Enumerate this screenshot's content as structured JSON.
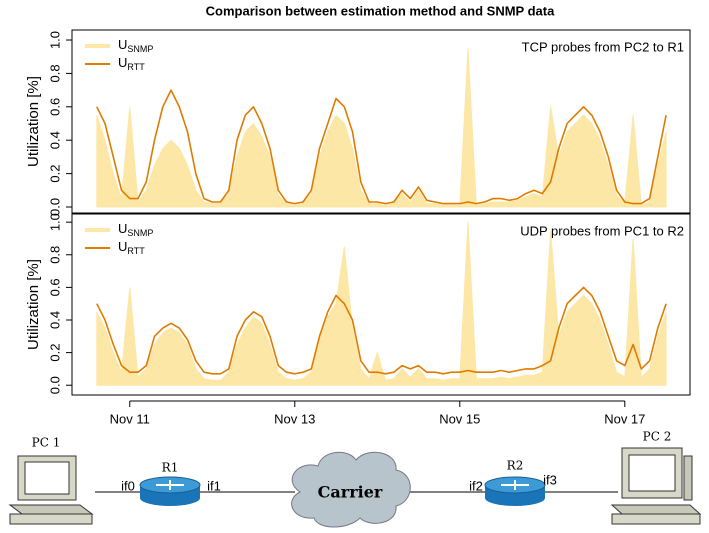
{
  "chart_data": [
    {
      "type": "line",
      "title": "Comparison between estimation method and SNMP data",
      "ylabel": "Utilization [%]",
      "annotation": "TCP probes from PC2 to R1",
      "x": [
        10.6,
        10.7,
        10.8,
        10.9,
        11.0,
        11.1,
        11.2,
        11.3,
        11.4,
        11.5,
        11.6,
        11.7,
        11.8,
        11.9,
        12.0,
        12.1,
        12.2,
        12.3,
        12.4,
        12.5,
        12.6,
        12.7,
        12.8,
        12.9,
        13.0,
        13.1,
        13.2,
        13.3,
        13.4,
        13.5,
        13.6,
        13.7,
        13.8,
        13.9,
        14.0,
        14.1,
        14.2,
        14.3,
        14.4,
        14.5,
        14.6,
        14.7,
        14.8,
        14.9,
        15.0,
        15.1,
        15.2,
        15.3,
        15.4,
        15.5,
        15.6,
        15.7,
        15.8,
        15.9,
        16.0,
        16.1,
        16.2,
        16.3,
        16.4,
        16.5,
        16.6,
        16.7,
        16.8,
        16.9,
        17.0,
        17.1,
        17.2,
        17.3,
        17.4,
        17.5
      ],
      "series": [
        {
          "name": "U",
          "subscript": "SNMP",
          "color": "#fde7a6",
          "style": "area",
          "values": [
            0.55,
            0.4,
            0.2,
            0.05,
            0.6,
            0.03,
            0.1,
            0.25,
            0.35,
            0.4,
            0.35,
            0.25,
            0.1,
            0.03,
            0.02,
            0.02,
            0.08,
            0.3,
            0.45,
            0.5,
            0.42,
            0.3,
            0.07,
            0.02,
            0.01,
            0.02,
            0.08,
            0.3,
            0.45,
            0.55,
            0.5,
            0.35,
            0.1,
            0.02,
            0.02,
            0.01,
            0.02,
            0.08,
            0.03,
            0.1,
            0.02,
            0.02,
            0.01,
            0.01,
            0.01,
            0.95,
            0.01,
            0.02,
            0.03,
            0.03,
            0.03,
            0.04,
            0.06,
            0.08,
            0.06,
            0.6,
            0.3,
            0.45,
            0.5,
            0.55,
            0.5,
            0.4,
            0.25,
            0.07,
            0.02,
            0.55,
            0.01,
            0.03,
            0.25,
            0.45
          ]
        },
        {
          "name": "U",
          "subscript": "RTT",
          "color": "#e07b00",
          "style": "line",
          "values": [
            0.6,
            0.5,
            0.3,
            0.1,
            0.05,
            0.05,
            0.15,
            0.4,
            0.6,
            0.7,
            0.6,
            0.45,
            0.2,
            0.05,
            0.03,
            0.03,
            0.1,
            0.4,
            0.55,
            0.6,
            0.5,
            0.35,
            0.1,
            0.03,
            0.02,
            0.03,
            0.1,
            0.35,
            0.5,
            0.65,
            0.6,
            0.45,
            0.15,
            0.03,
            0.03,
            0.02,
            0.03,
            0.1,
            0.05,
            0.12,
            0.04,
            0.03,
            0.02,
            0.02,
            0.02,
            0.03,
            0.02,
            0.03,
            0.05,
            0.05,
            0.04,
            0.05,
            0.08,
            0.1,
            0.08,
            0.15,
            0.35,
            0.5,
            0.55,
            0.6,
            0.55,
            0.45,
            0.3,
            0.1,
            0.03,
            0.02,
            0.02,
            0.05,
            0.3,
            0.55
          ]
        }
      ],
      "xlim": [
        10.3,
        17.79
      ],
      "ylim": [
        -0.036,
        1.06
      ],
      "yticks": [
        {
          "value": 0,
          "label": "0.0"
        },
        0.2,
        0.4,
        0.6,
        0.8,
        {
          "value": 1,
          "label": "1.0"
        }
      ],
      "legend": "top-left"
    },
    {
      "type": "line",
      "ylabel": "Utilization [%]",
      "annotation": "UDP probes from PC1 to R2",
      "x": [
        10.6,
        10.7,
        10.8,
        10.9,
        11.0,
        11.1,
        11.2,
        11.3,
        11.4,
        11.5,
        11.6,
        11.7,
        11.8,
        11.9,
        12.0,
        12.1,
        12.2,
        12.3,
        12.4,
        12.5,
        12.6,
        12.7,
        12.8,
        12.9,
        13.0,
        13.1,
        13.2,
        13.3,
        13.4,
        13.5,
        13.6,
        13.7,
        13.8,
        13.9,
        14.0,
        14.1,
        14.2,
        14.3,
        14.4,
        14.5,
        14.6,
        14.7,
        14.8,
        14.9,
        15.0,
        15.1,
        15.2,
        15.3,
        15.4,
        15.5,
        15.6,
        15.7,
        15.8,
        15.9,
        16.0,
        16.1,
        16.2,
        16.3,
        16.4,
        16.5,
        16.6,
        16.7,
        16.8,
        16.9,
        17.0,
        17.1,
        17.2,
        17.3,
        17.4,
        17.5
      ],
      "series": [
        {
          "name": "U",
          "subscript": "SNMP",
          "color": "#fde7a6",
          "style": "area",
          "values": [
            0.45,
            0.35,
            0.2,
            0.08,
            0.6,
            0.05,
            0.1,
            0.25,
            0.32,
            0.35,
            0.32,
            0.25,
            0.1,
            0.04,
            0.03,
            0.03,
            0.08,
            0.25,
            0.35,
            0.42,
            0.38,
            0.25,
            0.08,
            0.04,
            0.03,
            0.04,
            0.08,
            0.28,
            0.42,
            0.5,
            0.85,
            0.35,
            0.1,
            0.04,
            0.2,
            0.03,
            0.04,
            0.1,
            0.05,
            0.1,
            0.04,
            0.04,
            0.03,
            0.04,
            0.04,
            1.0,
            0.04,
            0.04,
            0.04,
            0.05,
            0.04,
            0.05,
            0.06,
            0.06,
            0.08,
            0.95,
            0.3,
            0.45,
            0.5,
            0.55,
            0.5,
            0.4,
            0.25,
            0.08,
            0.05,
            0.9,
            0.05,
            0.1,
            0.3,
            0.45
          ]
        },
        {
          "name": "U",
          "subscript": "RTT",
          "color": "#e07b00",
          "style": "line",
          "values": [
            0.5,
            0.4,
            0.25,
            0.12,
            0.08,
            0.08,
            0.12,
            0.3,
            0.35,
            0.38,
            0.35,
            0.28,
            0.15,
            0.08,
            0.07,
            0.07,
            0.1,
            0.3,
            0.4,
            0.45,
            0.42,
            0.3,
            0.12,
            0.08,
            0.07,
            0.08,
            0.1,
            0.3,
            0.45,
            0.55,
            0.5,
            0.4,
            0.15,
            0.08,
            0.08,
            0.07,
            0.08,
            0.12,
            0.1,
            0.12,
            0.08,
            0.08,
            0.07,
            0.08,
            0.08,
            0.09,
            0.08,
            0.08,
            0.08,
            0.09,
            0.08,
            0.09,
            0.1,
            0.1,
            0.12,
            0.15,
            0.35,
            0.5,
            0.55,
            0.6,
            0.55,
            0.45,
            0.3,
            0.15,
            0.12,
            0.25,
            0.1,
            0.15,
            0.35,
            0.5
          ]
        }
      ],
      "xlim": [
        10.3,
        17.79
      ],
      "ylim": [
        -0.06,
        1.05
      ],
      "yticks": [
        {
          "value": 0,
          "label": "0.0"
        },
        0.2,
        0.4,
        0.6,
        0.8,
        {
          "value": 1,
          "label": "1.0"
        }
      ],
      "xticks": [
        {
          "value": 11,
          "label": "Nov 11"
        },
        {
          "value": 13,
          "label": "Nov 13"
        },
        {
          "value": 15,
          "label": "Nov 15"
        },
        {
          "value": 17,
          "label": "Nov 17"
        }
      ],
      "legend": "top-left"
    }
  ],
  "diagram": {
    "pc1": "PC 1",
    "r1": "R1",
    "if0": "if0",
    "if1": "if1",
    "carrier": "Carrier",
    "if2": "if2",
    "r2": "R2",
    "if3": "if3",
    "pc2": "PC 2"
  }
}
